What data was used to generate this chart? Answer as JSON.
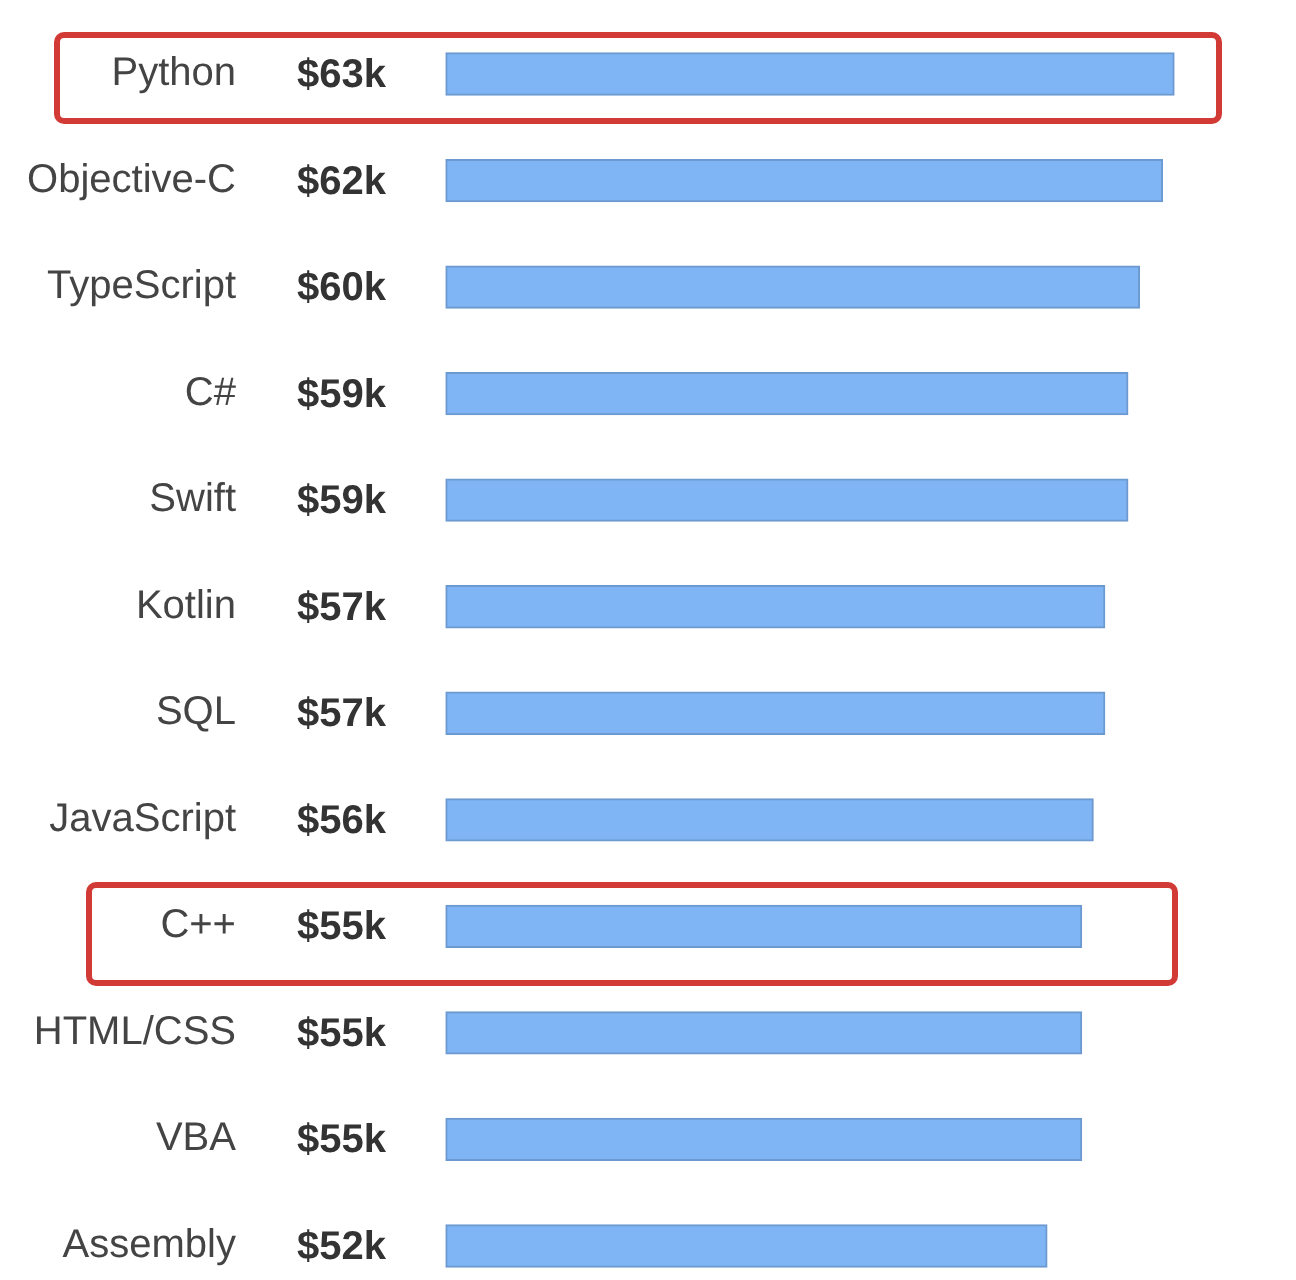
{
  "chart_data": {
    "type": "bar",
    "orientation": "horizontal",
    "categories": [
      "Python",
      "Objective-C",
      "TypeScript",
      "C#",
      "Swift",
      "Kotlin",
      "SQL",
      "JavaScript",
      "C++",
      "HTML/CSS",
      "VBA",
      "Assembly"
    ],
    "values": [
      63,
      62,
      60,
      59,
      59,
      57,
      57,
      56,
      55,
      55,
      55,
      52
    ],
    "value_labels": [
      "$63k",
      "$62k",
      "$60k",
      "$59k",
      "$59k",
      "$57k",
      "$57k",
      "$56k",
      "$55k",
      "$55k",
      "$55k",
      "$52k"
    ],
    "color": "#7fb5f5",
    "tick_labels": "y",
    "grid": false
  }
}
